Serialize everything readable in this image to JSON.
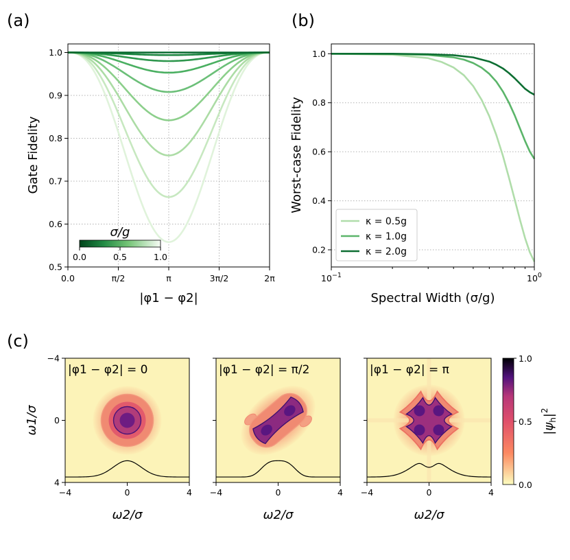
{
  "figure": {
    "panel_labels": [
      "(a)",
      "(b)",
      "(c)"
    ]
  },
  "chart_data": [
    {
      "id": "a",
      "type": "line",
      "xlabel": "|φ1 − φ2|",
      "ylabel": "Gate Fidelity",
      "xlim": [
        0,
        6.2832
      ],
      "ylim": [
        0.5,
        1.02
      ],
      "xticks": [
        0,
        1.5708,
        3.1416,
        4.7124,
        6.2832
      ],
      "xtick_labels": [
        "0.0",
        "π/2",
        "π",
        "3π/2",
        "2π"
      ],
      "yticks": [
        0.5,
        0.6,
        0.7,
        0.8,
        0.9,
        1.0
      ],
      "ytick_labels": [
        "0.5",
        "0.6",
        "0.7",
        "0.8",
        "0.9",
        "1.0"
      ],
      "grid": true,
      "colorbar": {
        "label": "σ/g",
        "ticks": [
          "0.0",
          "0.5",
          "1.0"
        ],
        "colors": [
          "#00441b",
          "#f7fcf5"
        ]
      },
      "series": [
        {
          "name": "σ/g=0.0",
          "min_at_pi": 1.0,
          "color": "#08692f"
        },
        {
          "name": "σ/g=0.125",
          "min_at_pi": 0.994,
          "color": "#1a843f"
        },
        {
          "name": "σ/g=0.25",
          "min_at_pi": 0.98,
          "color": "#2f974e"
        },
        {
          "name": "σ/g=0.375",
          "min_at_pi": 0.953,
          "color": "#4aaf61"
        },
        {
          "name": "σ/g=0.5",
          "min_at_pi": 0.908,
          "color": "#6bbf78"
        },
        {
          "name": "σ/g=0.625",
          "min_at_pi": 0.842,
          "color": "#8ccf8b"
        },
        {
          "name": "σ/g=0.75",
          "min_at_pi": 0.76,
          "color": "#acdca5"
        },
        {
          "name": "σ/g=0.875",
          "min_at_pi": 0.663,
          "color": "#c7e8c0"
        },
        {
          "name": "σ/g=1.0",
          "min_at_pi": 0.558,
          "color": "#e0f3db"
        }
      ]
    },
    {
      "id": "b",
      "type": "line",
      "xlabel": "Spectral Width (σ/g)",
      "ylabel": "Worst-case Fidelity",
      "xscale": "log",
      "xlim": [
        0.1,
        1.0
      ],
      "ylim": [
        0.13,
        1.04
      ],
      "xtick_labels": [
        "10−1",
        "100"
      ],
      "yticks": [
        0.2,
        0.4,
        0.6,
        0.8,
        1.0
      ],
      "ytick_labels": [
        "0.2",
        "0.4",
        "0.6",
        "0.8",
        "1.0"
      ],
      "grid": "horizontal",
      "legend_loc": "lower-left",
      "series": [
        {
          "name": "κ = 0.5g",
          "color": "#b0ddaa",
          "x": [
            0.1,
            0.2,
            0.3,
            0.35,
            0.4,
            0.45,
            0.5,
            0.55,
            0.6,
            0.65,
            0.7,
            0.75,
            0.8,
            0.85,
            0.9,
            0.95,
            1.0
          ],
          "y": [
            1.0,
            0.996,
            0.982,
            0.966,
            0.944,
            0.912,
            0.868,
            0.812,
            0.745,
            0.668,
            0.584,
            0.494,
            0.406,
            0.322,
            0.248,
            0.19,
            0.152
          ]
        },
        {
          "name": "κ = 1.0g",
          "color": "#5bb56a",
          "x": [
            0.1,
            0.2,
            0.3,
            0.4,
            0.45,
            0.5,
            0.55,
            0.6,
            0.65,
            0.7,
            0.75,
            0.8,
            0.85,
            0.9,
            0.95,
            1.0
          ],
          "y": [
            1.0,
            0.999,
            0.995,
            0.985,
            0.976,
            0.962,
            0.943,
            0.918,
            0.886,
            0.846,
            0.8,
            0.749,
            0.695,
            0.644,
            0.601,
            0.571
          ]
        },
        {
          "name": "κ = 2.0g",
          "color": "#0d6e32",
          "x": [
            0.1,
            0.2,
            0.3,
            0.4,
            0.5,
            0.6,
            0.65,
            0.7,
            0.75,
            0.8,
            0.85,
            0.9,
            0.95,
            1.0
          ],
          "y": [
            1.0,
            1.0,
            0.998,
            0.994,
            0.985,
            0.968,
            0.955,
            0.94,
            0.921,
            0.9,
            0.878,
            0.857,
            0.843,
            0.833
          ]
        }
      ]
    },
    {
      "id": "c",
      "type": "heatmap",
      "xlabel": "ω2/σ",
      "ylabel": "ω1/σ",
      "xlim": [
        -4,
        4
      ],
      "ylim": [
        -4,
        4
      ],
      "tick_labels": [
        "−4",
        "0",
        "4"
      ],
      "colorbar": {
        "label": "|ψh|²",
        "ticks": [
          "0.0",
          "0.5",
          "1.0"
        ],
        "colors": [
          "#fcfdbf",
          "#fc8961",
          "#b73779",
          "#51127c",
          "#000004"
        ]
      },
      "panels": [
        {
          "title": "|φ1 − φ2| = 0",
          "shape": "disk"
        },
        {
          "title": "|φ1 − φ2| = π/2",
          "shape": "diagonal"
        },
        {
          "title": "|φ1 − φ2| = π",
          "shape": "clover"
        }
      ]
    }
  ]
}
